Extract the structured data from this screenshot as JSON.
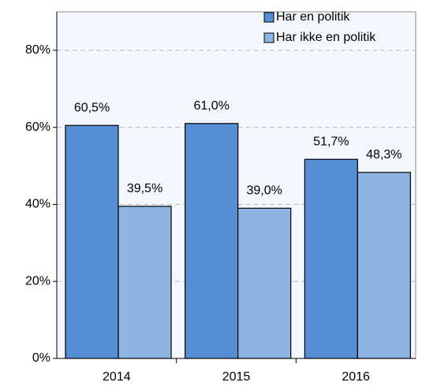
{
  "chart_data": {
    "type": "bar",
    "categories": [
      "2014",
      "2015",
      "2016"
    ],
    "series": [
      {
        "name": "Har en politik",
        "color": "#558ed5",
        "values": [
          60.5,
          61.0,
          51.7
        ],
        "value_labels": [
          "60,5%",
          "61,0%",
          "51,7%"
        ]
      },
      {
        "name": "Har ikke en politik",
        "color": "#8eb4e3",
        "values": [
          39.5,
          39.0,
          48.3
        ],
        "value_labels": [
          "39,5%",
          "39,0%",
          "48,3%"
        ]
      }
    ],
    "ylim": [
      0,
      90
    ],
    "yticks": [
      {
        "value": 0,
        "label": "0%"
      },
      {
        "value": 20,
        "label": "20%"
      },
      {
        "value": 40,
        "label": "40%"
      },
      {
        "value": 60,
        "label": "60%"
      },
      {
        "value": 80,
        "label": "80%"
      }
    ],
    "grid": true,
    "legend": "top-right"
  }
}
